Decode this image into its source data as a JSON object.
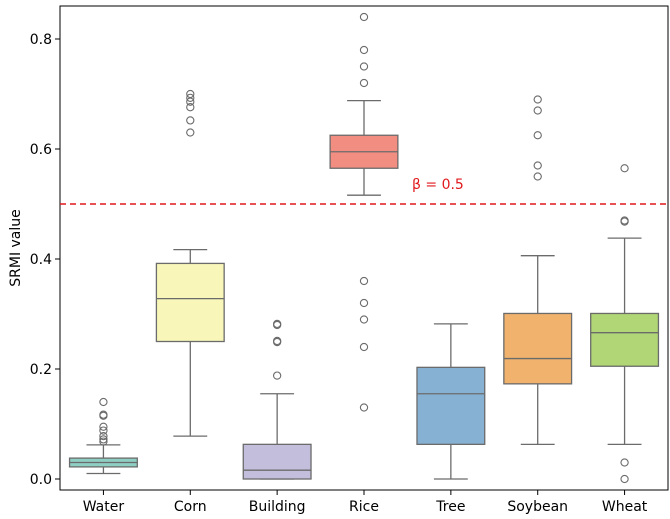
{
  "chart_data": {
    "type": "box",
    "title": "",
    "xlabel": "",
    "ylabel": "SRMI value",
    "ylim": [
      -0.02,
      0.86
    ],
    "yticks": [
      0.0,
      0.2,
      0.4,
      0.6,
      0.8
    ],
    "ytick_labels": [
      "0.0",
      "0.2",
      "0.4",
      "0.6",
      "0.8"
    ],
    "grid": false,
    "categories": [
      "Water",
      "Corn",
      "Building",
      "Rice",
      "Tree",
      "Soybean",
      "Wheat"
    ],
    "boxes": [
      {
        "name": "Water",
        "color": "#8ecfc4",
        "q1": 0.022,
        "median": 0.03,
        "q3": 0.038,
        "whisker_low": 0.01,
        "whisker_high": 0.062,
        "outliers": [
          0.068,
          0.072,
          0.078,
          0.088,
          0.095,
          0.115,
          0.117,
          0.14
        ]
      },
      {
        "name": "Corn",
        "color": "#f8f6b8",
        "q1": 0.25,
        "median": 0.328,
        "q3": 0.392,
        "whisker_low": 0.078,
        "whisker_high": 0.417,
        "outliers": [
          0.63,
          0.652,
          0.676,
          0.686,
          0.693,
          0.7
        ]
      },
      {
        "name": "Building",
        "color": "#c3bedc",
        "q1": 0.0,
        "median": 0.016,
        "q3": 0.063,
        "whisker_low": 0.0,
        "whisker_high": 0.155,
        "outliers": [
          0.188,
          0.249,
          0.251,
          0.28,
          0.282
        ]
      },
      {
        "name": "Rice",
        "color": "#f28d82",
        "q1": 0.565,
        "median": 0.595,
        "q3": 0.625,
        "whisker_low": 0.516,
        "whisker_high": 0.688,
        "outliers": [
          0.13,
          0.24,
          0.29,
          0.32,
          0.36,
          0.72,
          0.75,
          0.78,
          0.84
        ]
      },
      {
        "name": "Tree",
        "color": "#87b1d2",
        "q1": 0.063,
        "median": 0.155,
        "q3": 0.203,
        "whisker_low": 0.0,
        "whisker_high": 0.282,
        "outliers": []
      },
      {
        "name": "Soybean",
        "color": "#f0b26d",
        "q1": 0.173,
        "median": 0.219,
        "q3": 0.301,
        "whisker_low": 0.063,
        "whisker_high": 0.406,
        "outliers": [
          0.55,
          0.57,
          0.625,
          0.67,
          0.69
        ]
      },
      {
        "name": "Wheat",
        "color": "#b0d675",
        "q1": 0.205,
        "median": 0.266,
        "q3": 0.301,
        "whisker_low": 0.063,
        "whisker_high": 0.438,
        "outliers": [
          0.0,
          0.03,
          0.468,
          0.47,
          0.565
        ]
      }
    ],
    "reference_line": {
      "y": 0.5,
      "label": "β = 0.5",
      "color": "#e0191c",
      "style": "dashed"
    }
  }
}
